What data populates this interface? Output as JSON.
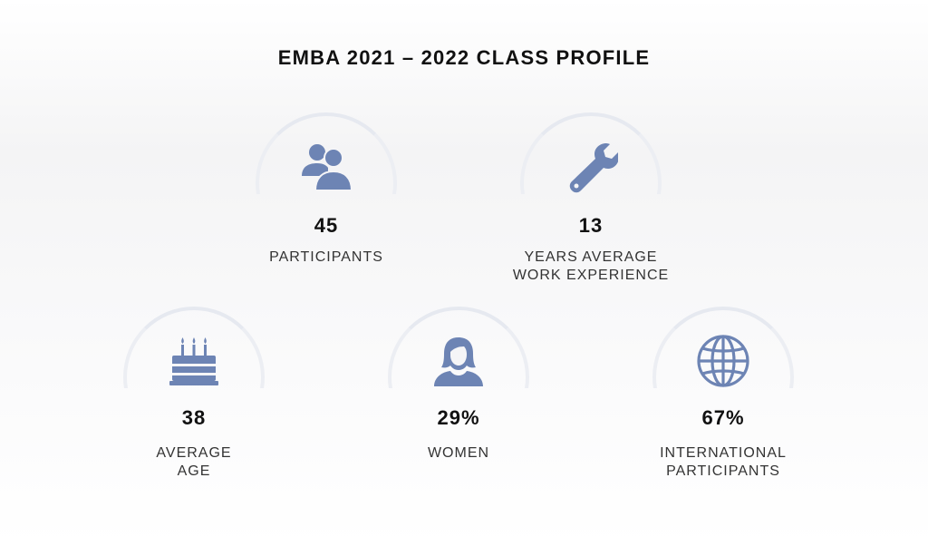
{
  "title": "EMBA 2021 – 2022 CLASS PROFILE",
  "stats": [
    {
      "icon": "users-icon",
      "value": "45",
      "label_lines": [
        "PARTICIPANTS"
      ]
    },
    {
      "icon": "wrench-icon",
      "value": "13",
      "label_lines": [
        "YEARS AVERAGE",
        "WORK EXPERIENCE"
      ]
    },
    {
      "icon": "birthday-cake-icon",
      "value": "38",
      "label_lines": [
        "AVERAGE",
        "AGE"
      ]
    },
    {
      "icon": "woman-icon",
      "value": "29%",
      "label_lines": [
        "WOMEN"
      ]
    },
    {
      "icon": "globe-icon",
      "value": "67%",
      "label_lines": [
        "INTERNATIONAL",
        "PARTICIPANTS"
      ]
    }
  ],
  "colors": {
    "icon": "#6d84b4",
    "arc": "#e6e9f0"
  }
}
